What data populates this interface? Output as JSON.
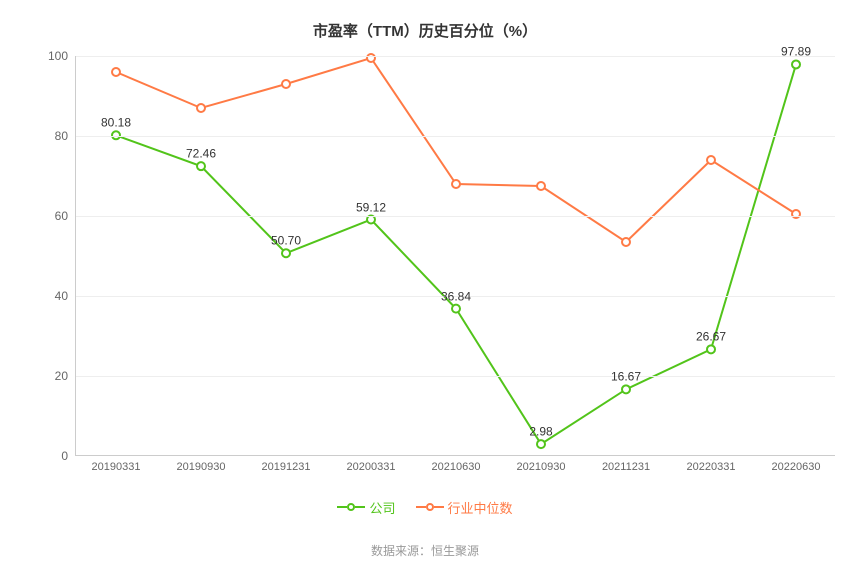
{
  "chart": {
    "type": "line",
    "title": "市盈率（TTM）历史百分位（%）",
    "background_color": "#ffffff",
    "grid_color": "#eeeeee",
    "axis_color": "#cccccc",
    "title_fontsize": 15,
    "tick_fontsize": 12,
    "label_fontsize": 12,
    "ylim": [
      0,
      100
    ],
    "ytick_step": 20,
    "yticks": [
      0,
      20,
      40,
      60,
      80,
      100
    ],
    "categories": [
      "20190331",
      "20190930",
      "20191231",
      "20200331",
      "20210630",
      "20210930",
      "20211231",
      "20220331",
      "20220630"
    ],
    "series": [
      {
        "name": "公司",
        "color": "#52c41a",
        "line_width": 2,
        "marker_style": "circle",
        "marker_size": 4,
        "marker_fill": "#ffffff",
        "values": [
          80.18,
          72.46,
          50.7,
          59.12,
          36.84,
          2.98,
          16.67,
          26.67,
          97.89
        ],
        "show_labels": true
      },
      {
        "name": "行业中位数",
        "color": "#ff7a45",
        "line_width": 2,
        "marker_style": "circle",
        "marker_size": 4,
        "marker_fill": "#ffffff",
        "values": [
          96,
          87,
          93,
          99.5,
          68,
          67.5,
          53.5,
          74,
          60.5
        ],
        "show_labels": false
      }
    ],
    "legend_position": "bottom",
    "source_text": "数据来源：恒生聚源"
  }
}
